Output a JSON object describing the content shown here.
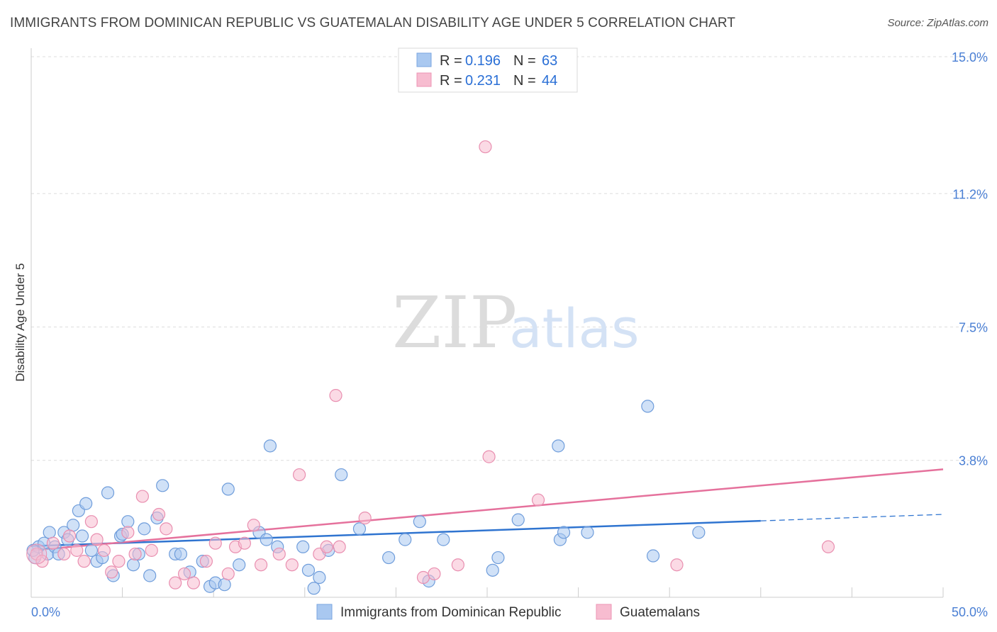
{
  "title": "IMMIGRANTS FROM DOMINICAN REPUBLIC VS GUATEMALAN DISABILITY AGE UNDER 5 CORRELATION CHART",
  "source": "Source: ZipAtlas.com",
  "watermark": {
    "zip": "ZIP",
    "atlas": "atlas"
  },
  "legend": {
    "rows": [
      {
        "r_label": "R =",
        "r_value": "0.196",
        "n_label": "N =",
        "n_value": "63",
        "color": "#a9c8f0",
        "stroke": "#7aa6e0"
      },
      {
        "r_label": "R =",
        "r_value": "0.231",
        "n_label": "N =",
        "n_value": "44",
        "color": "#f7bcd0",
        "stroke": "#ec94b4"
      }
    ]
  },
  "chart_data": {
    "type": "scatter",
    "xlabel": "",
    "ylabel": "Disability Age Under 5",
    "xlim": [
      0,
      50
    ],
    "ylim": [
      0,
      15
    ],
    "y_ticks": [
      {
        "value": 3.8,
        "label": "3.8%"
      },
      {
        "value": 7.5,
        "label": "7.5%"
      },
      {
        "value": 11.2,
        "label": "11.2%"
      },
      {
        "value": 15.0,
        "label": "15.0%"
      }
    ],
    "x_tick_labels": [
      {
        "value": 0,
        "label": "0.0%"
      },
      {
        "value": 50,
        "label": "50.0%"
      }
    ],
    "grid": true,
    "series": [
      {
        "name": "Immigrants from Dominican Republic",
        "color": "#a9c8f0",
        "stroke": "#6f9ddb",
        "trend_color": "#2f74d0",
        "trend": {
          "x0": 0,
          "y0": 1.42,
          "x1": 40,
          "y1": 2.12,
          "dash_x1": 50,
          "dash_y1": 2.3
        },
        "points": [
          [
            0.2,
            1.1
          ],
          [
            0.4,
            1.4
          ],
          [
            0.7,
            1.5
          ],
          [
            0.9,
            1.2
          ],
          [
            1.0,
            1.8
          ],
          [
            1.3,
            1.4
          ],
          [
            1.5,
            1.2
          ],
          [
            1.8,
            1.8
          ],
          [
            2.0,
            1.6
          ],
          [
            2.3,
            2.0
          ],
          [
            2.6,
            2.4
          ],
          [
            3.0,
            2.6
          ],
          [
            3.3,
            1.3
          ],
          [
            3.6,
            1.0
          ],
          [
            3.9,
            1.1
          ],
          [
            4.2,
            2.9
          ],
          [
            4.5,
            0.6
          ],
          [
            4.9,
            1.7
          ],
          [
            5.3,
            2.1
          ],
          [
            5.6,
            0.9
          ],
          [
            5.9,
            1.2
          ],
          [
            6.2,
            1.9
          ],
          [
            6.5,
            0.6
          ],
          [
            6.9,
            2.2
          ],
          [
            7.2,
            3.1
          ],
          [
            7.9,
            1.2
          ],
          [
            8.2,
            1.2
          ],
          [
            8.7,
            0.7
          ],
          [
            9.4,
            1.0
          ],
          [
            9.8,
            0.3
          ],
          [
            10.1,
            0.4
          ],
          [
            10.6,
            0.35
          ],
          [
            10.8,
            3.0
          ],
          [
            11.4,
            0.9
          ],
          [
            12.5,
            1.8
          ],
          [
            12.9,
            1.6
          ],
          [
            13.1,
            4.2
          ],
          [
            13.5,
            1.4
          ],
          [
            14.9,
            1.4
          ],
          [
            15.2,
            0.75
          ],
          [
            15.5,
            0.25
          ],
          [
            15.8,
            0.55
          ],
          [
            16.3,
            1.3
          ],
          [
            17.0,
            3.4
          ],
          [
            19.6,
            1.1
          ],
          [
            20.5,
            1.6
          ],
          [
            21.3,
            2.1
          ],
          [
            21.8,
            0.45
          ],
          [
            22.6,
            1.6
          ],
          [
            25.3,
            0.75
          ],
          [
            25.6,
            1.1
          ],
          [
            26.7,
            2.15
          ],
          [
            28.9,
            4.2
          ],
          [
            29.0,
            1.6
          ],
          [
            29.2,
            1.8
          ],
          [
            30.5,
            1.8
          ],
          [
            33.8,
            5.3
          ],
          [
            34.1,
            1.15
          ],
          [
            36.6,
            1.8
          ],
          [
            0.1,
            1.3
          ],
          [
            5.0,
            1.75
          ],
          [
            2.8,
            1.7
          ],
          [
            18.0,
            1.9
          ]
        ]
      },
      {
        "name": "Guatemalans",
        "color": "#f7bcd0",
        "stroke": "#e98fb0",
        "trend_color": "#e5719c",
        "trend": {
          "x0": 0,
          "y0": 1.3,
          "x1": 50,
          "y1": 3.55
        },
        "points": [
          [
            0.3,
            1.2
          ],
          [
            0.6,
            1.0
          ],
          [
            1.2,
            1.5
          ],
          [
            1.8,
            1.2
          ],
          [
            2.1,
            1.7
          ],
          [
            2.5,
            1.3
          ],
          [
            2.9,
            1.0
          ],
          [
            3.3,
            2.1
          ],
          [
            3.6,
            1.6
          ],
          [
            4.0,
            1.3
          ],
          [
            4.4,
            0.7
          ],
          [
            4.8,
            1.0
          ],
          [
            5.3,
            1.8
          ],
          [
            5.7,
            1.2
          ],
          [
            6.1,
            2.8
          ],
          [
            6.6,
            1.3
          ],
          [
            7.0,
            2.3
          ],
          [
            7.4,
            1.9
          ],
          [
            7.9,
            0.4
          ],
          [
            8.4,
            0.65
          ],
          [
            8.9,
            0.4
          ],
          [
            9.6,
            1.0
          ],
          [
            10.1,
            1.5
          ],
          [
            10.8,
            0.65
          ],
          [
            11.2,
            1.4
          ],
          [
            11.7,
            1.5
          ],
          [
            12.2,
            2.0
          ],
          [
            12.6,
            0.9
          ],
          [
            13.6,
            1.2
          ],
          [
            14.3,
            0.9
          ],
          [
            14.7,
            3.4
          ],
          [
            15.8,
            1.2
          ],
          [
            16.2,
            1.4
          ],
          [
            16.7,
            5.6
          ],
          [
            16.9,
            1.4
          ],
          [
            18.3,
            2.2
          ],
          [
            21.5,
            0.55
          ],
          [
            22.1,
            0.65
          ],
          [
            23.4,
            0.9
          ],
          [
            24.9,
            12.5
          ],
          [
            25.1,
            3.9
          ],
          [
            27.8,
            2.7
          ],
          [
            35.4,
            0.9
          ],
          [
            43.7,
            1.4
          ]
        ]
      }
    ]
  },
  "bottom_legend": [
    {
      "label": "Immigrants from Dominican Republic"
    },
    {
      "label": "Guatemalans"
    }
  ]
}
